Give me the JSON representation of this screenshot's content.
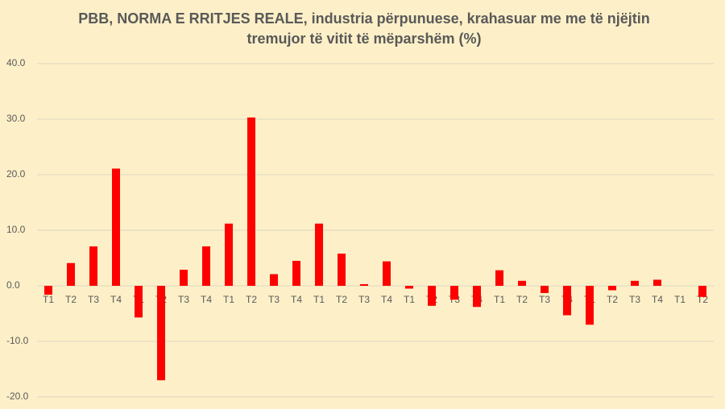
{
  "chart_data": {
    "type": "bar",
    "title": [
      "PBB, NORMA E RRITJES REALE, industria përpunuese, krahasuar me me të njëjtin",
      "tremujor të vitit të mëparshëm (%)"
    ],
    "categories": [
      "T1",
      "T2",
      "T3",
      "T4",
      "T1",
      "T2",
      "T3",
      "T4",
      "T1",
      "T2",
      "T3",
      "T4",
      "T1",
      "T2",
      "T3",
      "T4",
      "T1",
      "T2",
      "T3",
      "T4",
      "T1",
      "T2",
      "T3",
      "T4",
      "T1",
      "T2",
      "T3",
      "T4",
      "T1",
      "T2"
    ],
    "values": [
      -1.6,
      4.1,
      7.1,
      21.1,
      -5.7,
      -17.0,
      2.9,
      7.1,
      11.2,
      30.3,
      2.1,
      4.5,
      11.2,
      5.8,
      0.3,
      4.4,
      -0.5,
      -3.6,
      -2.5,
      -3.8,
      2.8,
      0.9,
      -1.3,
      -5.3,
      -7.0,
      -0.8,
      0.9,
      1.1,
      null,
      -2.0
    ],
    "color": "#ff0000",
    "ylim": [
      -20,
      40
    ],
    "yticks": [
      {
        "value": -20,
        "label": "-20.0"
      },
      {
        "value": -10,
        "label": "-10.0"
      },
      {
        "value": 0,
        "label": "0.0"
      },
      {
        "value": 10,
        "label": "10.0"
      },
      {
        "value": 20,
        "label": "20.0"
      },
      {
        "value": 30,
        "label": "30.0"
      },
      {
        "value": 40,
        "label": "40.0"
      }
    ],
    "grid": true
  }
}
